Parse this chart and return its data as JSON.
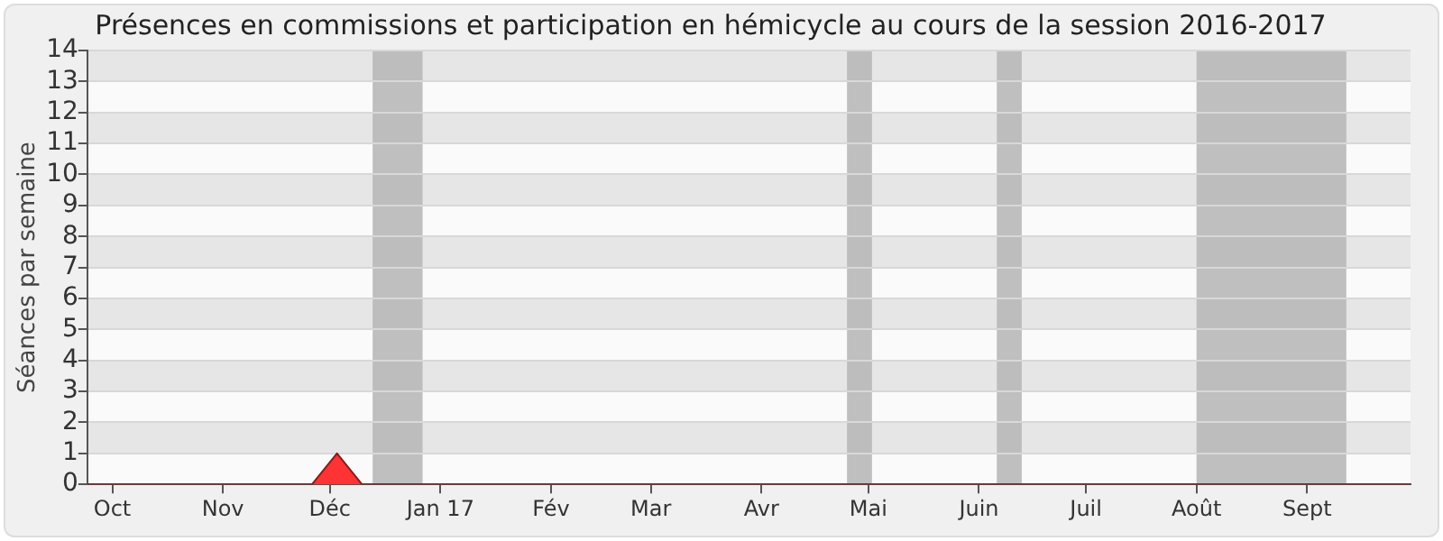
{
  "chart_data": {
    "type": "area",
    "title": "Présences en commissions et participation en hémicycle au cours de la session 2016-2017",
    "ylabel": "Séances par semaine",
    "x": [
      "2016-09-24",
      "2016-11-26",
      "2016-12-03",
      "2016-12-10",
      "2017-09-30"
    ],
    "series": [
      {
        "color": "#ff3333",
        "values": [
          0,
          0,
          1,
          0,
          0
        ]
      }
    ],
    "xlim": [
      "2016-09-24",
      "2017-09-30"
    ],
    "xticks": [
      {
        "value": "2016-10-01",
        "label": "Oct"
      },
      {
        "value": "2016-11-01",
        "label": "Nov"
      },
      {
        "value": "2016-12-01",
        "label": "Déc"
      },
      {
        "value": "2017-01-01",
        "label": "Jan 17"
      },
      {
        "value": "2017-02-01",
        "label": "Fév"
      },
      {
        "value": "2017-03-01",
        "label": "Mar"
      },
      {
        "value": "2017-04-01",
        "label": "Avr"
      },
      {
        "value": "2017-05-01",
        "label": "Mai"
      },
      {
        "value": "2017-06-01",
        "label": "Juin"
      },
      {
        "value": "2017-07-01",
        "label": "Juil"
      },
      {
        "value": "2017-08-01",
        "label": "Août"
      },
      {
        "value": "2017-09-01",
        "label": "Sept"
      }
    ],
    "ylim": [
      0,
      14
    ],
    "yticks": [
      0,
      1,
      2,
      3,
      4,
      5,
      6,
      7,
      8,
      9,
      10,
      11,
      12,
      13,
      14
    ],
    "grid": "y",
    "legend": false,
    "marker": "none",
    "bands": [
      {
        "axis": "x",
        "from": "2016-12-13",
        "to": "2016-12-27",
        "color": "#b8b8b8"
      },
      {
        "axis": "x",
        "from": "2017-04-25",
        "to": "2017-05-02",
        "color": "#b8b8b8"
      },
      {
        "axis": "x",
        "from": "2017-06-06",
        "to": "2017-06-13",
        "color": "#b8b8b8"
      },
      {
        "axis": "x",
        "from": "2017-08-01",
        "to": "2017-09-12",
        "color": "#b8b8b8"
      }
    ]
  }
}
